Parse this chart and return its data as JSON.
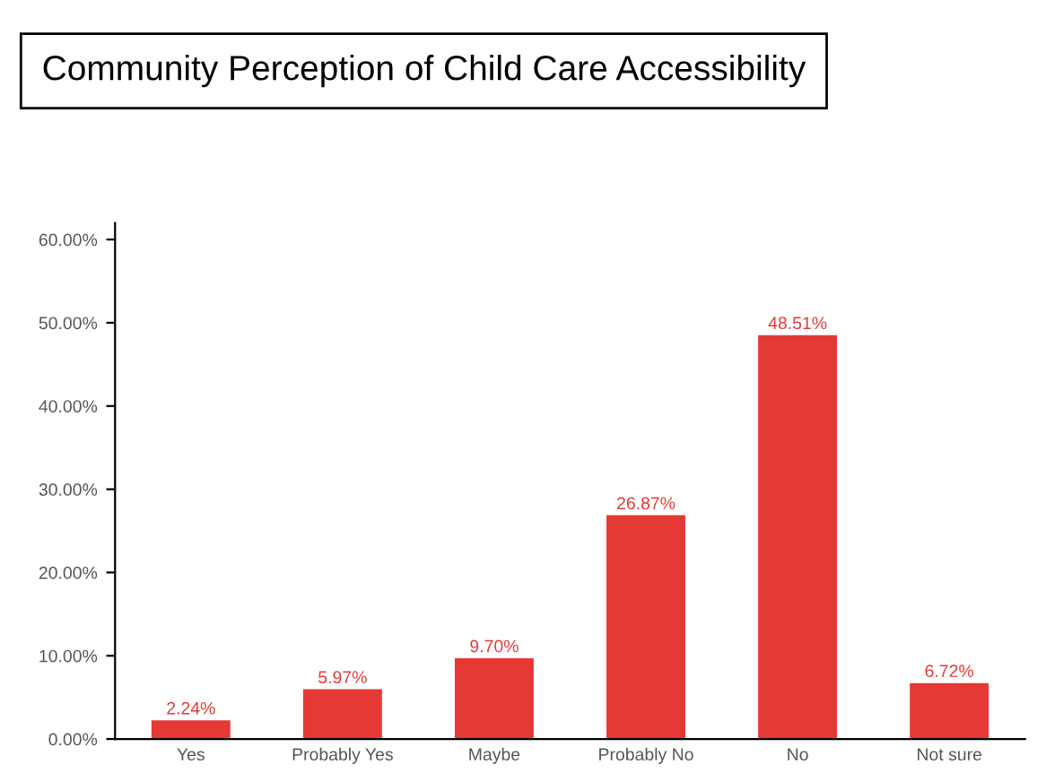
{
  "chart_data": {
    "type": "bar",
    "title": "Community Perception of Child Care Accessibility",
    "categories": [
      "Yes",
      "Probably Yes",
      "Maybe",
      "Probably No",
      "No",
      "Not sure"
    ],
    "values": [
      2.24,
      5.97,
      9.7,
      26.87,
      48.51,
      6.72
    ],
    "value_labels": [
      "2.24%",
      "5.97%",
      "9.70%",
      "26.87%",
      "48.51%",
      "6.72%"
    ],
    "color": "#e53935",
    "ylim": [
      0,
      62
    ],
    "yticks": [
      {
        "value": 0,
        "label": "0.00%"
      },
      {
        "value": 10,
        "label": "10.00%"
      },
      {
        "value": 20,
        "label": "20.00%"
      },
      {
        "value": 30,
        "label": "30.00%"
      },
      {
        "value": 40,
        "label": "40.00%"
      },
      {
        "value": 50,
        "label": "50.00%"
      },
      {
        "value": 60,
        "label": "60.00%"
      }
    ],
    "grid": false
  }
}
